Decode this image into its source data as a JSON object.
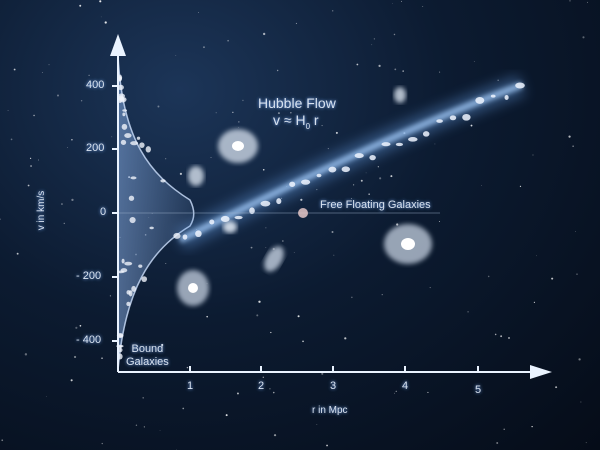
{
  "title": "Hubble Flow",
  "formula": {
    "v": "v ≈ H",
    "sub": "0",
    "r": " r"
  },
  "zero_line_label": "Free Floating Galaxies",
  "bound_label": [
    "Bound",
    "Galaxies"
  ],
  "y_axis": {
    "label": "v in km/s",
    "ticks": [
      "400",
      "200",
      "0",
      "- 200",
      "- 400"
    ]
  },
  "x_axis": {
    "label": "r in Mpc",
    "ticks": [
      "1",
      "2",
      "3",
      "4",
      "5"
    ]
  },
  "colors": {
    "axis": "#e8f2ff",
    "flow": "#8fc3ff",
    "background": "#0c1b31"
  }
}
